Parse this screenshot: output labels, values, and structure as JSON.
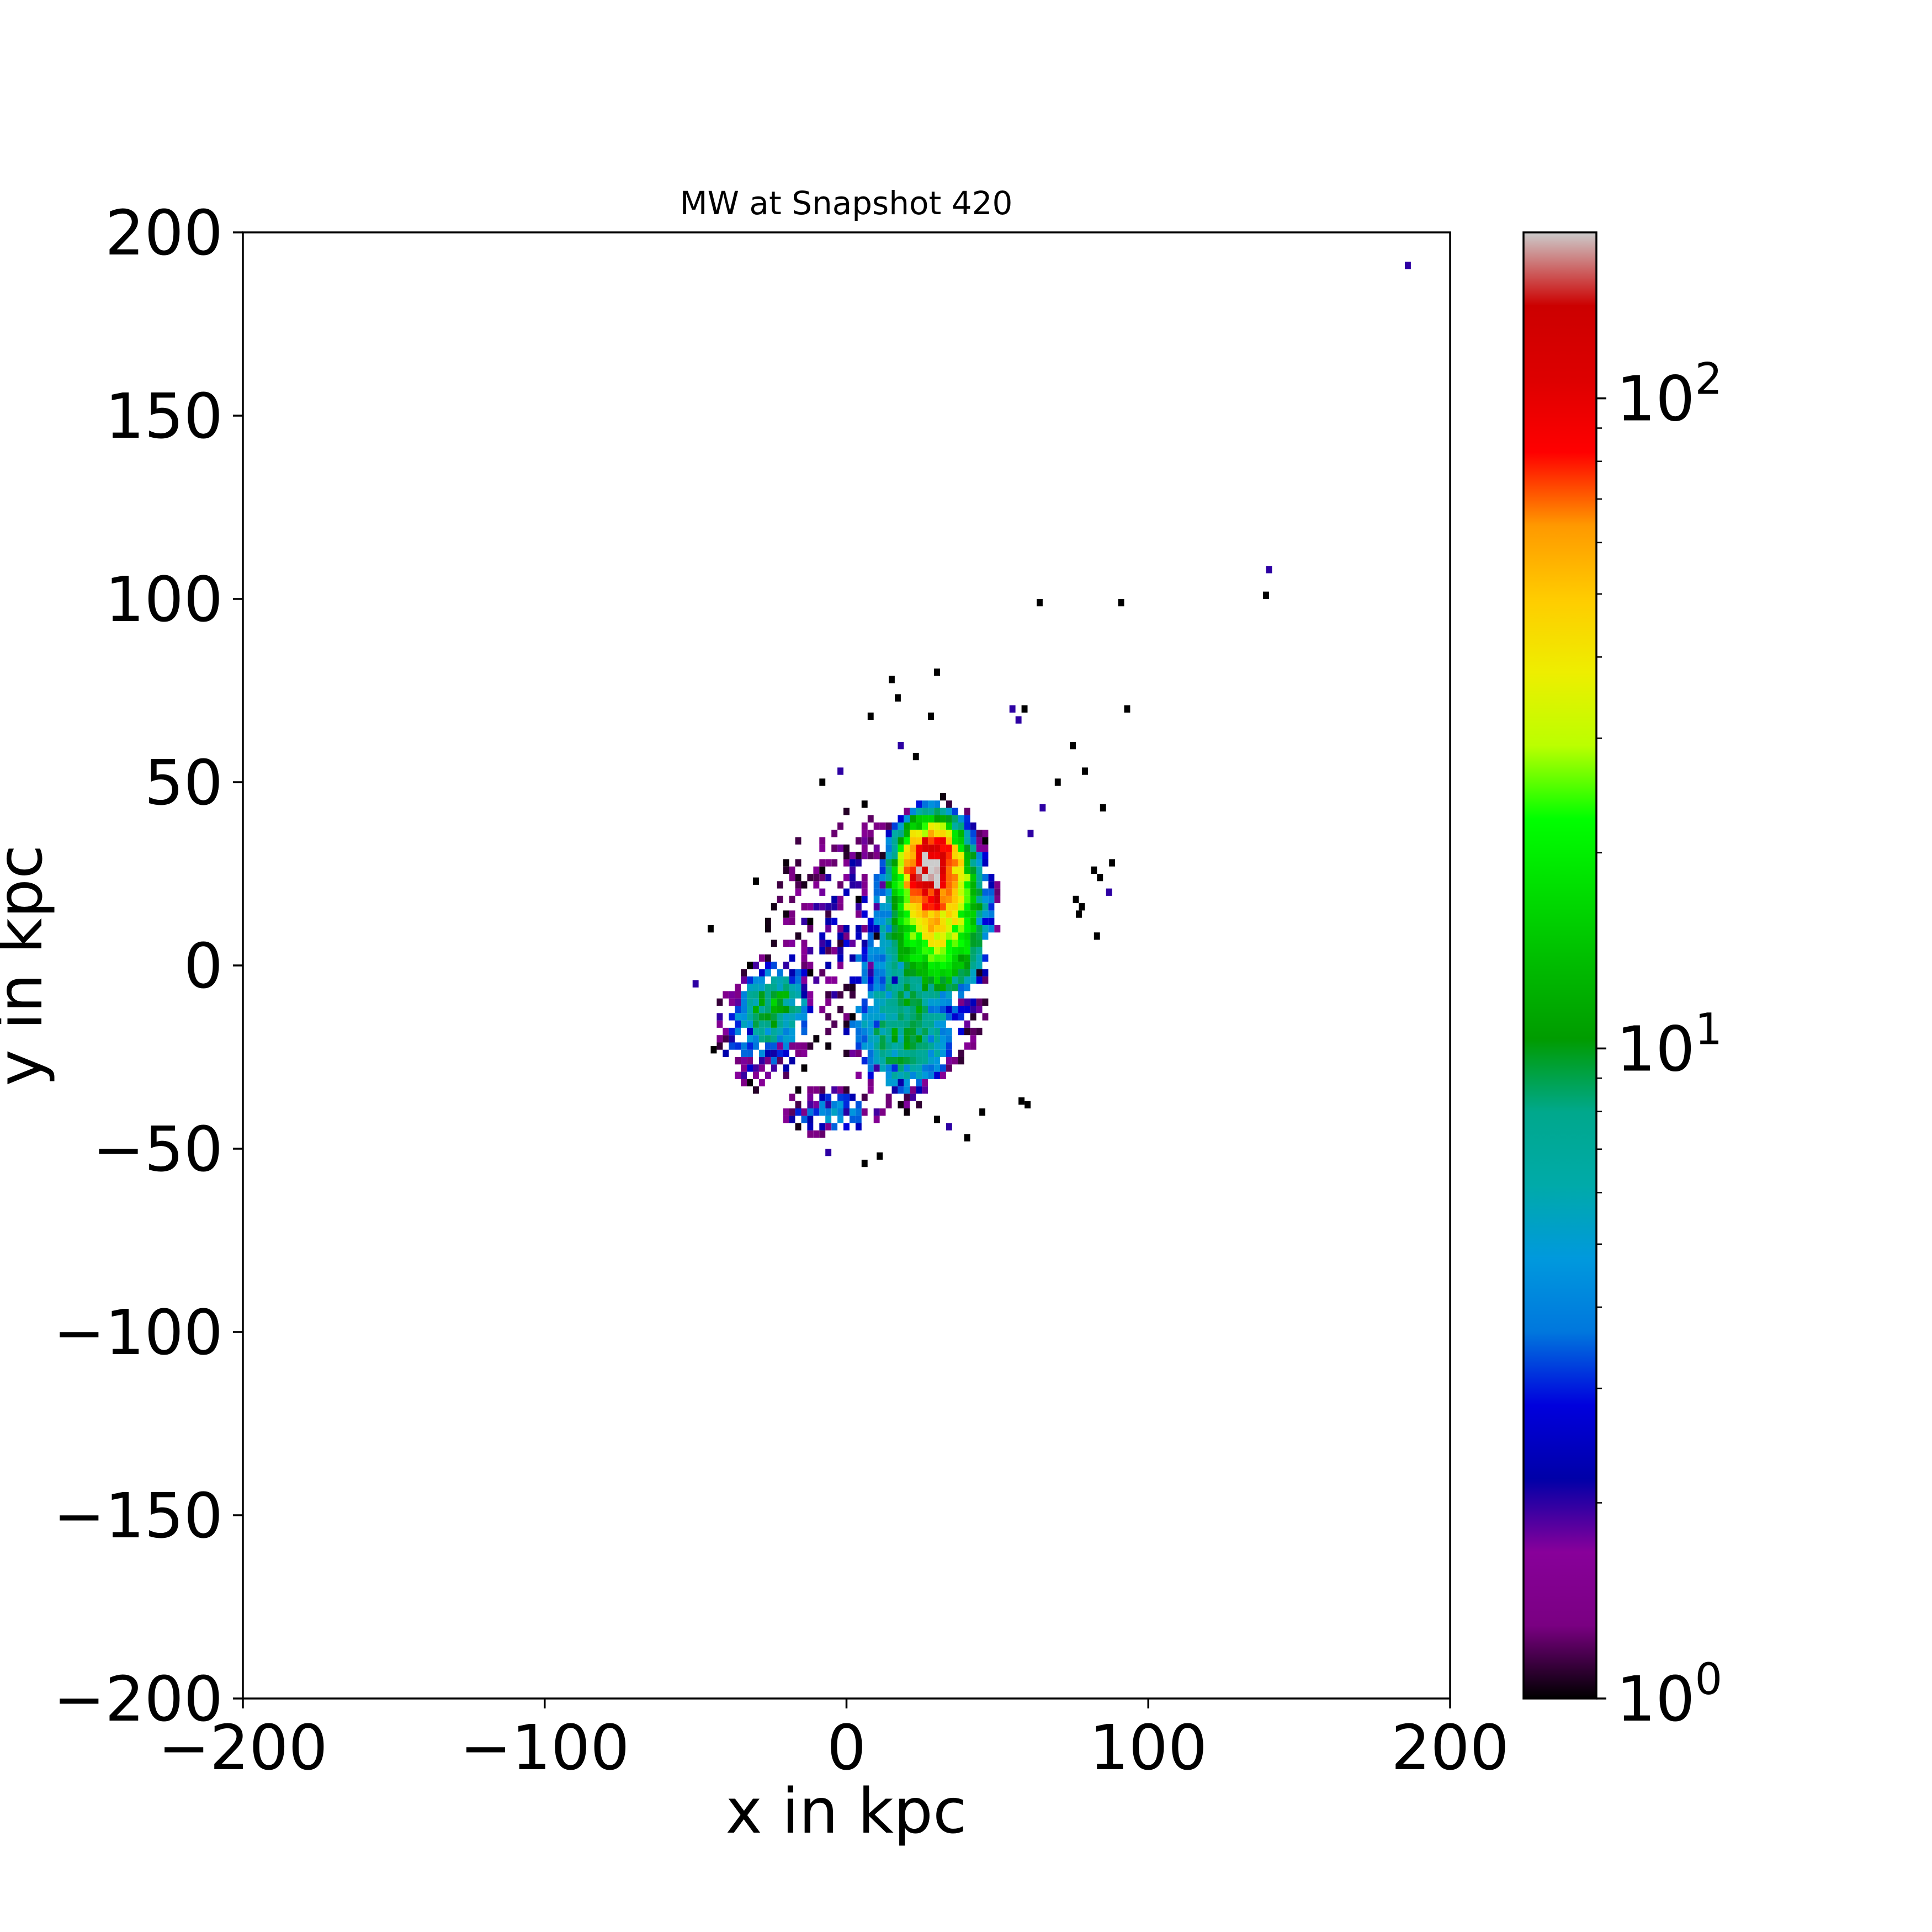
{
  "chart_data": {
    "type": "heatmap",
    "title": "MW at Snapshot 420",
    "xlabel": "x in kpc",
    "ylabel": "y in kpc",
    "xlim": [
      -200,
      200
    ],
    "ylim": [
      -200,
      200
    ],
    "xticks": [
      -200,
      -100,
      0,
      100,
      200
    ],
    "yticks": [
      -200,
      -150,
      -100,
      -50,
      0,
      50,
      100,
      150,
      200
    ],
    "xtick_labels": [
      "−200",
      "−100",
      "0",
      "100",
      "200"
    ],
    "ytick_labels": [
      "−200",
      "−150",
      "−100",
      "−50",
      "0",
      "50",
      "100",
      "150",
      "200"
    ],
    "colorbar": {
      "scale": "log",
      "range": [
        1,
        180
      ],
      "colormap": "nipy_spectral",
      "ticks": [
        {
          "value": 1,
          "base": "10",
          "exponent": "0"
        },
        {
          "value": 10,
          "base": "10",
          "exponent": "1"
        },
        {
          "value": 100,
          "base": "10",
          "exponent": "2"
        }
      ]
    },
    "bin_size": 2,
    "grid": false,
    "clusters": [
      {
        "x": 28,
        "y": 27,
        "sx": 5,
        "sy": 6,
        "peak": 150
      },
      {
        "x": 30,
        "y": 18,
        "sx": 8,
        "sy": 10,
        "peak": 35
      },
      {
        "x": 32,
        "y": 8,
        "sx": 7,
        "sy": 8,
        "peak": 14
      },
      {
        "x": 24,
        "y": -8,
        "sx": 12,
        "sy": 14,
        "peak": 5
      },
      {
        "x": 18,
        "y": -22,
        "sx": 9,
        "sy": 9,
        "peak": 6
      },
      {
        "x": -24,
        "y": -10,
        "sx": 6,
        "sy": 6,
        "peak": 9
      },
      {
        "x": -28,
        "y": -18,
        "sx": 10,
        "sy": 9,
        "peak": 4
      },
      {
        "x": -5,
        "y": -40,
        "sx": 10,
        "sy": 4,
        "peak": 4
      },
      {
        "x": 5,
        "y": 10,
        "sx": 22,
        "sy": 24,
        "peak": 2
      }
    ],
    "scatter_points": [
      [
        186,
        191,
        2
      ],
      [
        140,
        108,
        2
      ],
      [
        139,
        101,
        1
      ],
      [
        91,
        99,
        1
      ],
      [
        64,
        99,
        1
      ],
      [
        93,
        70,
        1
      ],
      [
        55,
        70,
        2
      ],
      [
        59,
        70,
        1
      ],
      [
        57,
        67,
        2
      ],
      [
        75,
        60,
        1
      ],
      [
        79,
        53,
        1
      ],
      [
        70,
        50,
        1
      ],
      [
        65,
        43,
        2
      ],
      [
        85,
        43,
        1
      ],
      [
        61,
        36,
        2
      ],
      [
        88,
        28,
        1
      ],
      [
        82,
        26,
        1
      ],
      [
        84,
        24,
        1
      ],
      [
        87,
        20,
        2
      ],
      [
        76,
        18,
        1
      ],
      [
        78,
        16,
        1
      ],
      [
        77,
        14,
        1
      ],
      [
        83,
        8,
        1
      ],
      [
        60,
        -38,
        1
      ],
      [
        58,
        -37,
        1
      ],
      [
        45,
        -40,
        1
      ],
      [
        40,
        -47,
        1
      ],
      [
        30,
        80,
        1
      ],
      [
        15,
        78,
        1
      ],
      [
        17,
        73,
        1
      ],
      [
        8,
        68,
        1
      ],
      [
        28,
        68,
        1
      ],
      [
        18,
        60,
        2
      ],
      [
        23,
        57,
        1
      ],
      [
        -2,
        53,
        2
      ],
      [
        -8,
        50,
        1
      ],
      [
        -30,
        23,
        1
      ],
      [
        -45,
        10,
        1
      ],
      [
        -50,
        -5,
        2
      ],
      [
        -44,
        -23,
        1
      ],
      [
        -6,
        -51,
        2
      ],
      [
        6,
        -54,
        1
      ],
      [
        11,
        -52,
        1
      ],
      [
        34,
        -44,
        2
      ],
      [
        30,
        -42,
        1
      ]
    ]
  }
}
